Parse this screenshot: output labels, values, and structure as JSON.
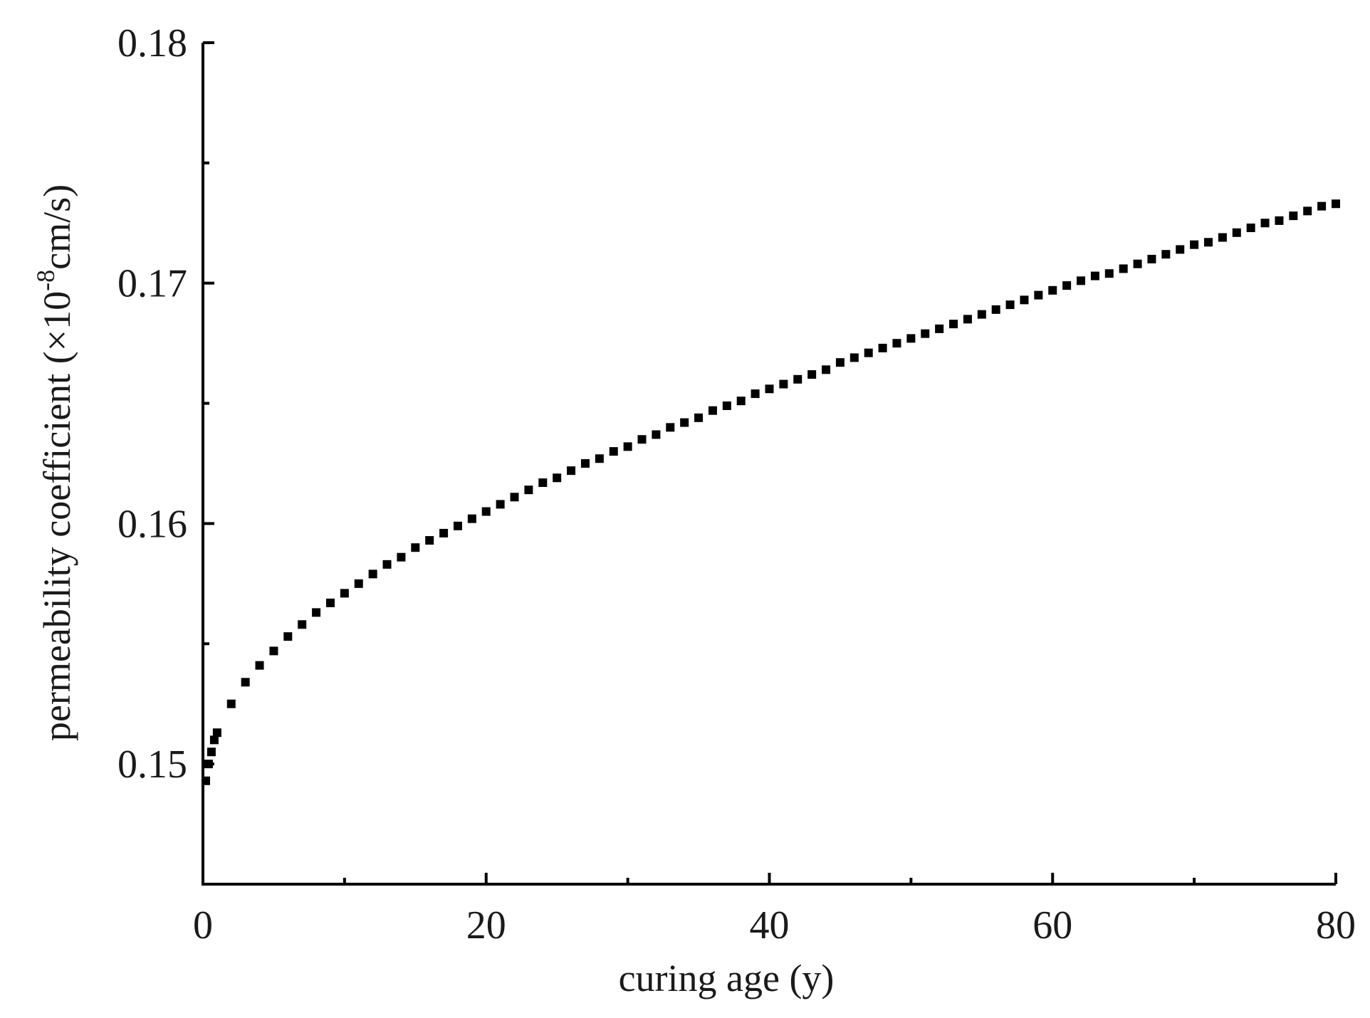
{
  "chart_data": {
    "type": "scatter",
    "title": "",
    "xlabel": "curing age (y)",
    "ylabel_main": "permeability coefficient (×10",
    "ylabel_sup": "-8",
    "ylabel_unit": "cm/s)",
    "xlim": [
      0,
      80
    ],
    "ylim": [
      0.145,
      0.18
    ],
    "x_ticks": [
      0,
      20,
      40,
      60,
      80
    ],
    "x_tick_labels": [
      "0",
      "20",
      "40",
      "60",
      "80"
    ],
    "x_minor_ticks": [
      10,
      30,
      50,
      70
    ],
    "y_ticks": [
      0.15,
      0.16,
      0.17,
      0.18
    ],
    "y_tick_labels": [
      "0.15",
      "0.16",
      "0.17",
      "0.18"
    ],
    "y_minor_ticks": [
      0.155,
      0.165,
      0.175
    ],
    "grid": false,
    "legend": "none",
    "marker": "square",
    "color": "#000000",
    "series": [
      {
        "x": [
          0.2,
          0.4,
          0.6,
          0.8,
          1,
          2,
          3,
          4,
          5,
          6,
          7,
          8,
          9,
          10,
          11,
          12,
          13,
          14,
          15,
          16,
          17,
          18,
          19,
          20,
          21,
          22,
          23,
          24,
          25,
          26,
          27,
          28,
          29,
          30,
          31,
          32,
          33,
          34,
          35,
          36,
          37,
          38,
          39,
          40,
          41,
          42,
          43,
          44,
          45,
          46,
          47,
          48,
          49,
          50,
          51,
          52,
          53,
          54,
          55,
          56,
          57,
          58,
          59,
          60,
          61,
          62,
          63,
          64,
          65,
          66,
          67,
          68,
          69,
          70,
          71,
          72,
          73,
          74,
          75,
          76,
          77,
          78,
          79,
          80
        ],
        "y": [
          0.1493,
          0.15,
          0.1505,
          0.151,
          0.1513,
          0.1525,
          0.1534,
          0.1541,
          0.1547,
          0.1553,
          0.1558,
          0.1563,
          0.1567,
          0.1571,
          0.1575,
          0.1579,
          0.1583,
          0.1586,
          0.159,
          0.1593,
          0.1596,
          0.1599,
          0.1602,
          0.1605,
          0.1608,
          0.1611,
          0.1614,
          0.1617,
          0.1619,
          0.1622,
          0.1625,
          0.1627,
          0.163,
          0.1632,
          0.1635,
          0.1637,
          0.164,
          0.1642,
          0.1644,
          0.1647,
          0.1649,
          0.1651,
          0.1654,
          0.1656,
          0.1658,
          0.166,
          0.1662,
          0.1664,
          0.1667,
          0.1669,
          0.1671,
          0.1673,
          0.1675,
          0.1677,
          0.1679,
          0.1681,
          0.1683,
          0.1685,
          0.1687,
          0.1689,
          0.1691,
          0.1693,
          0.1695,
          0.1697,
          0.1699,
          0.1701,
          0.1703,
          0.1704,
          0.1706,
          0.1708,
          0.171,
          0.1712,
          0.1714,
          0.1716,
          0.1717,
          0.1719,
          0.1721,
          0.1723,
          0.1725,
          0.1726,
          0.1728,
          0.173,
          0.1732,
          0.1733
        ]
      }
    ]
  }
}
